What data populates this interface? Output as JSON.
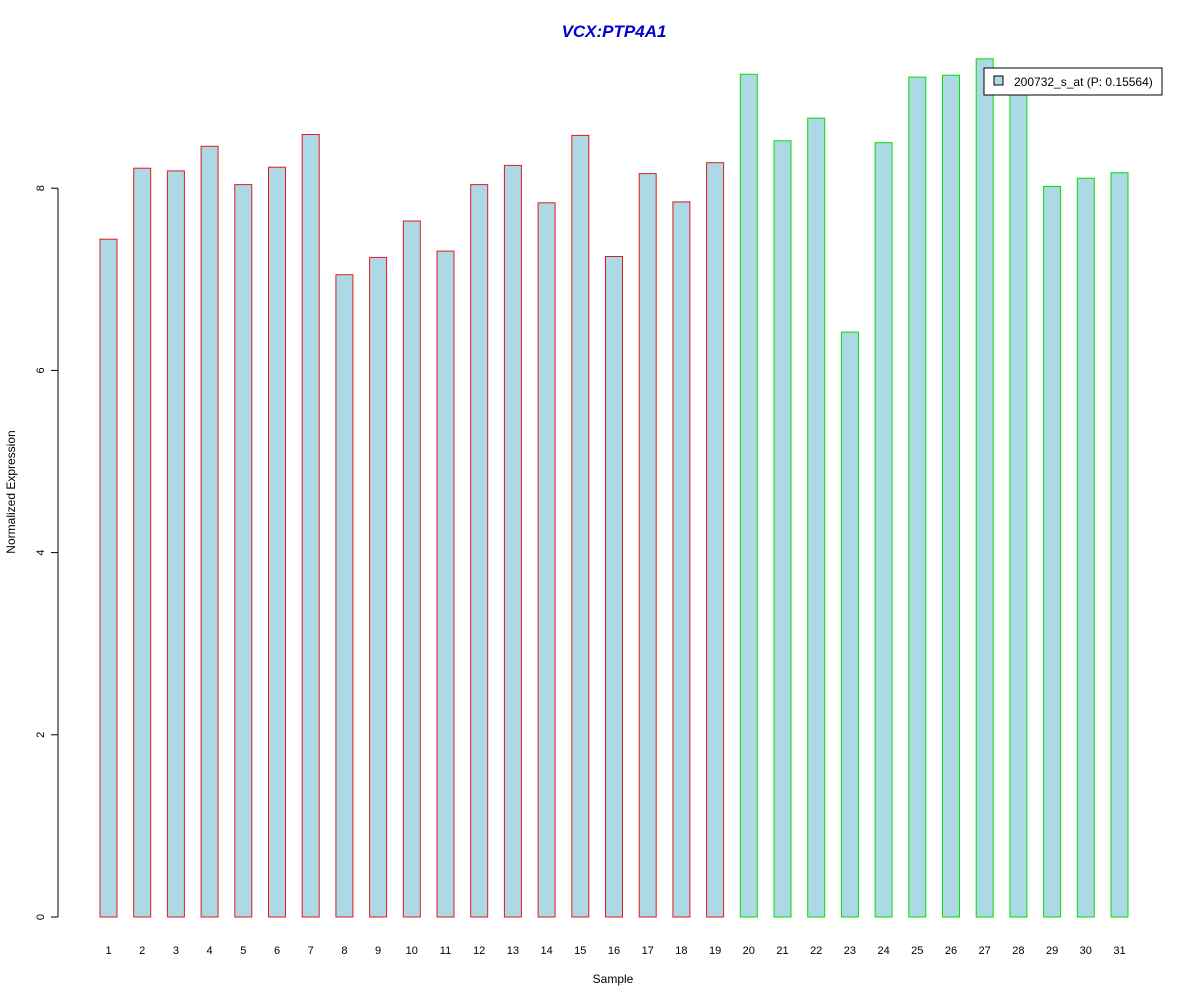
{
  "chart_data": {
    "type": "bar",
    "title": "VCX:PTP4A1",
    "xlabel": "Sample",
    "ylabel": "Normalized Expression",
    "ylim": [
      0,
      9.4
    ],
    "yticks": [
      0,
      2,
      4,
      6,
      8
    ],
    "grid": false,
    "legend_position": "top-right",
    "categories": [
      "1",
      "2",
      "3",
      "4",
      "5",
      "6",
      "7",
      "8",
      "9",
      "10",
      "11",
      "12",
      "13",
      "14",
      "15",
      "16",
      "17",
      "18",
      "19",
      "20",
      "21",
      "22",
      "23",
      "24",
      "25",
      "26",
      "27",
      "28",
      "29",
      "30",
      "31"
    ],
    "series": [
      {
        "name": "200732_s_at (P: 0.15564)",
        "values": [
          7.44,
          8.22,
          8.19,
          8.46,
          8.04,
          8.23,
          8.59,
          7.05,
          7.24,
          7.64,
          7.31,
          8.04,
          8.25,
          7.84,
          8.58,
          7.25,
          8.16,
          7.85,
          8.28,
          9.25,
          8.52,
          8.77,
          6.42,
          8.5,
          9.22,
          9.24,
          9.42,
          9.07,
          8.02,
          8.11,
          8.17
        ]
      }
    ],
    "group_outline_colors": [
      "#e31a1c",
      "#e31a1c",
      "#e31a1c",
      "#e31a1c",
      "#e31a1c",
      "#e31a1c",
      "#e31a1c",
      "#e31a1c",
      "#e31a1c",
      "#e31a1c",
      "#e31a1c",
      "#e31a1c",
      "#e31a1c",
      "#e31a1c",
      "#e31a1c",
      "#e31a1c",
      "#e31a1c",
      "#e31a1c",
      "#e31a1c",
      "#00e000",
      "#00e000",
      "#00e000",
      "#00e000",
      "#00e000",
      "#00e000",
      "#00e000",
      "#00e000",
      "#00e000",
      "#00e000",
      "#00e000",
      "#00e000"
    ],
    "colors": {
      "bar_fill": "#add8e6",
      "title": "#0000cd",
      "axis": "#000000"
    }
  }
}
